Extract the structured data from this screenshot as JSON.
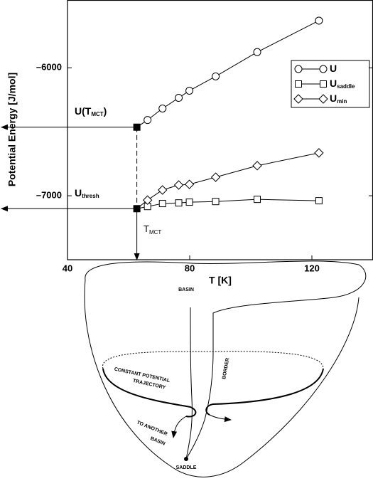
{
  "chart_data": {
    "type": "line",
    "xlabel": "T [K]",
    "ylabel": "Potential Energy [J/mol]",
    "xlim": [
      40,
      140
    ],
    "ylim": [
      -7500,
      -5470
    ],
    "xticks": [
      40,
      80,
      120
    ],
    "yticks": [
      {
        "value": -7000,
        "label": "–7000"
      },
      {
        "value": -6000,
        "label": "–6000"
      }
    ],
    "x": [
      66.2,
      71.1,
      76.4,
      79.9,
      88.5,
      102.1,
      122.3
    ],
    "series": [
      {
        "name": "U",
        "marker": "circle",
        "color": "#000000",
        "values": [
          -6408,
          -6318,
          -6235,
          -6179,
          -6067,
          -5877,
          -5631
        ]
      },
      {
        "name": "U",
        "sub": "saddle",
        "marker": "square",
        "color": "#000000",
        "values": [
          -7084,
          -7061,
          -7056,
          -7050,
          -7045,
          -7028,
          -7039
        ]
      },
      {
        "name": "U",
        "sub": "min",
        "marker": "diamond",
        "color": "#000000",
        "values": [
          -7034,
          -6955,
          -6916,
          -6911,
          -6855,
          -6765,
          -6665
        ]
      }
    ],
    "points": {
      "x": [
        62.7,
        62.7
      ],
      "y": [
        -6464,
        -7101
      ]
    },
    "u_tmct": {
      "pre": "U(T",
      "sub": "MCT",
      "post": ")"
    },
    "u_thresh": {
      "main": "U",
      "sub": "thresh"
    },
    "t_mct": {
      "main": "T",
      "sub": "MCT"
    }
  },
  "diagram": {
    "basin_top": "BASIN",
    "trajectory": [
      "CONSTANT POTENTIAL",
      "TRAJECTORY"
    ],
    "border": "BORDER",
    "another": [
      "TO ANOTHER",
      "BASIN"
    ],
    "saddle": "SADDLE"
  }
}
